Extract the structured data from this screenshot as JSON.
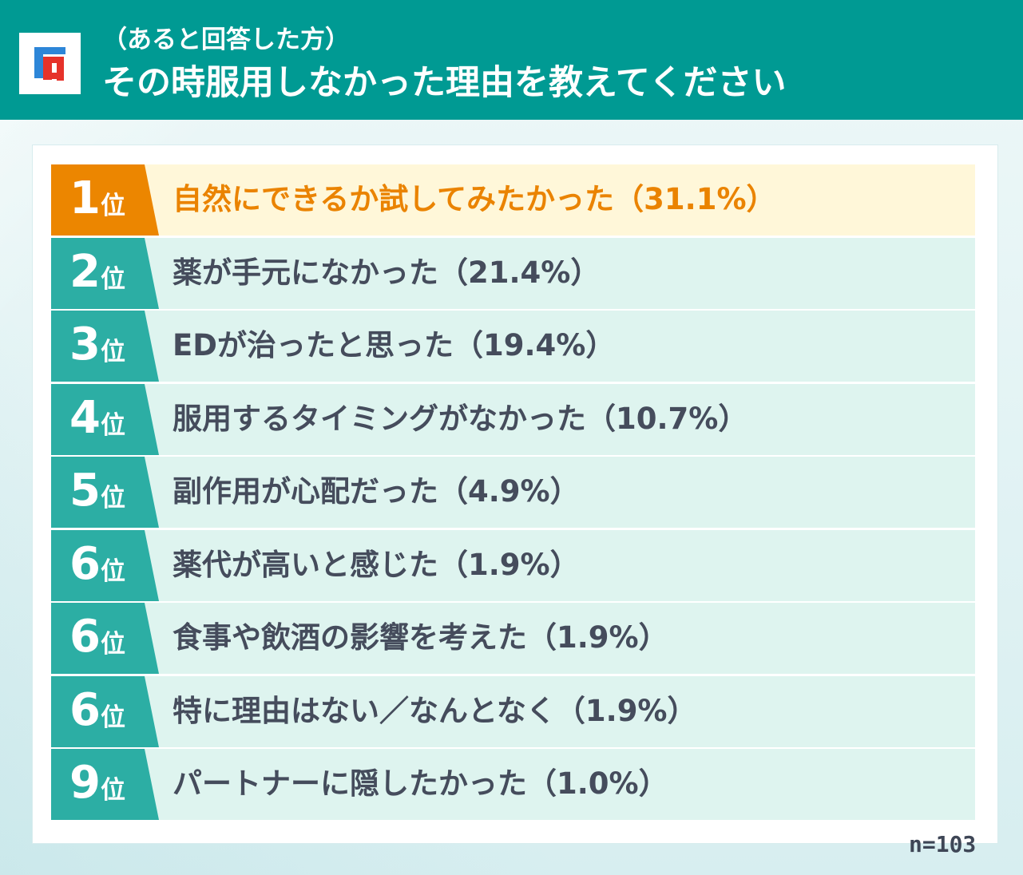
{
  "header": {
    "subtitle": "（あると回答した方）",
    "title": "その時服用しなかった理由を教えてください",
    "logo": "F-logo",
    "colors": {
      "header": "#009a93",
      "logo_red": "#e6322a",
      "logo_blue": "#2d86d8"
    }
  },
  "ranking": [
    {
      "rank": "1",
      "suffix": "位",
      "reason": "自然にできるか試してみたかった（31.1%）",
      "percent": 31.1
    },
    {
      "rank": "2",
      "suffix": "位",
      "reason": "薬が手元になかった（21.4%）",
      "percent": 21.4
    },
    {
      "rank": "3",
      "suffix": "位",
      "reason": "EDが治ったと思った（19.4%）",
      "percent": 19.4
    },
    {
      "rank": "4",
      "suffix": "位",
      "reason": "服用するタイミングがなかった（10.7%）",
      "percent": 10.7
    },
    {
      "rank": "5",
      "suffix": "位",
      "reason": "副作用が心配だった（4.9%）",
      "percent": 4.9
    },
    {
      "rank": "6",
      "suffix": "位",
      "reason": "薬代が高いと感じた（1.9%）",
      "percent": 1.9
    },
    {
      "rank": "6",
      "suffix": "位",
      "reason": "食事や飲酒の影響を考えた（1.9%）",
      "percent": 1.9
    },
    {
      "rank": "6",
      "suffix": "位",
      "reason": "特に理由はない／なんとなく（1.9%）",
      "percent": 1.9
    },
    {
      "rank": "9",
      "suffix": "位",
      "reason": "パートナーに隠したかった（1.0%）",
      "percent": 1.0
    }
  ],
  "sample_size": "n=103",
  "colors": {
    "first_rank": "#ec8600",
    "first_row": "#fff7d9",
    "rank": "#2caea4",
    "row": "#def4ef",
    "text": "#454c5c"
  }
}
